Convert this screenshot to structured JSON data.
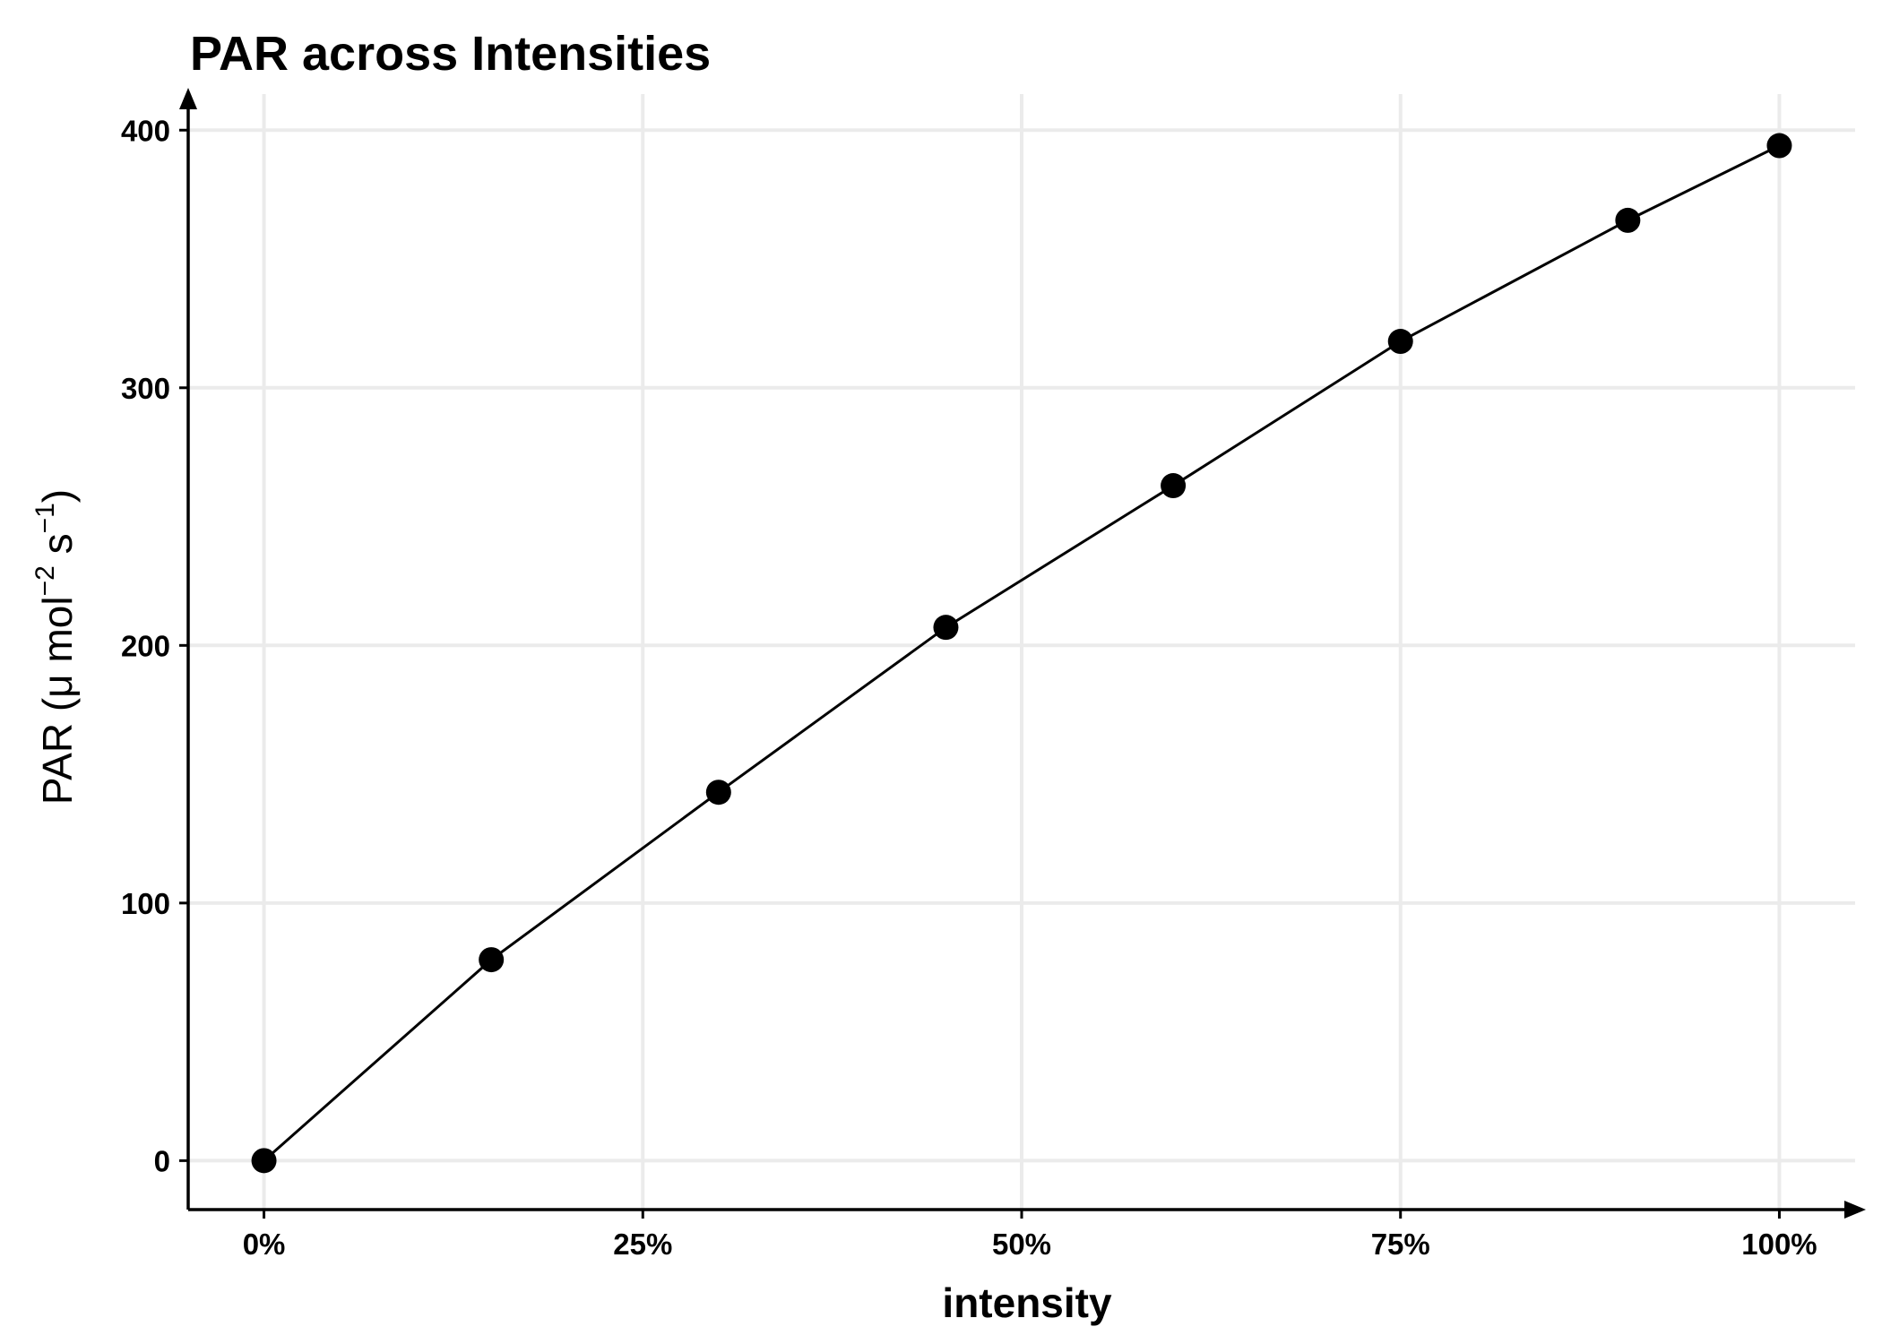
{
  "chart_data": {
    "type": "line",
    "title": "PAR across Intensities",
    "xlabel": "intensity",
    "ylabel": {
      "prefix": "PAR (",
      "mu": "μ",
      "mol": " mol",
      "sup1": "−2",
      "s": " s",
      "sup2": "−1",
      "suffix": ")"
    },
    "x": [
      0,
      0.15,
      0.3,
      0.45,
      0.6,
      0.75,
      0.9,
      1.0
    ],
    "series": [
      {
        "values": [
          0,
          78,
          143,
          207,
          262,
          318,
          365,
          394
        ]
      }
    ],
    "xlim": [
      -0.05,
      1.05
    ],
    "ylim": [
      -19,
      414
    ],
    "x_ticks": [
      0,
      0.25,
      0.5,
      0.75,
      1.0
    ],
    "x_tick_labels": [
      "0%",
      "25%",
      "50%",
      "75%",
      "100%"
    ],
    "y_ticks": [
      0,
      100,
      200,
      300,
      400
    ],
    "y_tick_labels": [
      "0",
      "100",
      "200",
      "300",
      "400"
    ],
    "grid": true,
    "legend": "none",
    "colors": {
      "line": "#000000",
      "points": "#000000",
      "grid": "#ebebeb",
      "background": "#ffffff"
    }
  }
}
